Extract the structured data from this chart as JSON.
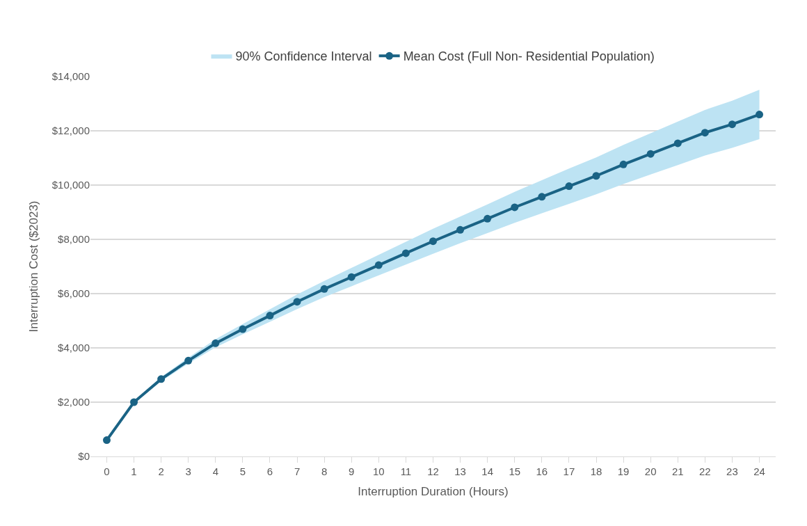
{
  "chart_data": {
    "type": "line",
    "x": [
      0,
      1,
      2,
      3,
      4,
      5,
      6,
      7,
      8,
      9,
      10,
      11,
      12,
      13,
      14,
      15,
      16,
      17,
      18,
      19,
      20,
      21,
      22,
      23,
      24
    ],
    "xlim": [
      -0.6,
      24.6
    ],
    "xticks": [
      0,
      1,
      2,
      3,
      4,
      5,
      6,
      7,
      8,
      9,
      10,
      11,
      12,
      13,
      14,
      15,
      16,
      17,
      18,
      19,
      20,
      21,
      22,
      23,
      24
    ],
    "series": [
      {
        "name": "Mean Cost (Full Non- Residential Population)",
        "color": "#1a6385",
        "marker": "circle",
        "values": [
          600,
          2000,
          2850,
          3530,
          4170,
          4690,
          5190,
          5700,
          6170,
          6610,
          7050,
          7490,
          7930,
          8350,
          8760,
          9180,
          9570,
          9960,
          10340,
          10760,
          11150,
          11540,
          11930,
          12240,
          12600
        ],
        "lower": [
          600,
          1960,
          2770,
          3420,
          4020,
          4500,
          4960,
          5430,
          5870,
          6270,
          6670,
          7070,
          7470,
          7860,
          8230,
          8610,
          8960,
          9310,
          9660,
          10040,
          10390,
          10740,
          11090,
          11370,
          11690
        ],
        "upper": [
          600,
          2040,
          2930,
          3640,
          4320,
          4880,
          5420,
          5970,
          6470,
          6950,
          7430,
          7910,
          8390,
          8840,
          9290,
          9750,
          10180,
          10610,
          11020,
          11480,
          11910,
          12340,
          12770,
          13110,
          13510
        ]
      }
    ],
    "annotations": [
      "90% Confidence Interval"
    ],
    "xlabel": "Interruption Duration (Hours)",
    "ylabel": "Interruption Cost ($2023)",
    "ylim": [
      0,
      14000
    ],
    "yticks": [
      {
        "value": 0,
        "label": "$0"
      },
      {
        "value": 2000,
        "label": "$2,000"
      },
      {
        "value": 4000,
        "label": "$4,000"
      },
      {
        "value": 6000,
        "label": "$6,000"
      },
      {
        "value": 8000,
        "label": "$8,000"
      },
      {
        "value": 10000,
        "label": "$10,000"
      },
      {
        "value": 12000,
        "label": "$12,000"
      },
      {
        "value": 14000,
        "label": "$14,000"
      }
    ],
    "grid": "y",
    "legend": "top",
    "line_style": "solid"
  }
}
